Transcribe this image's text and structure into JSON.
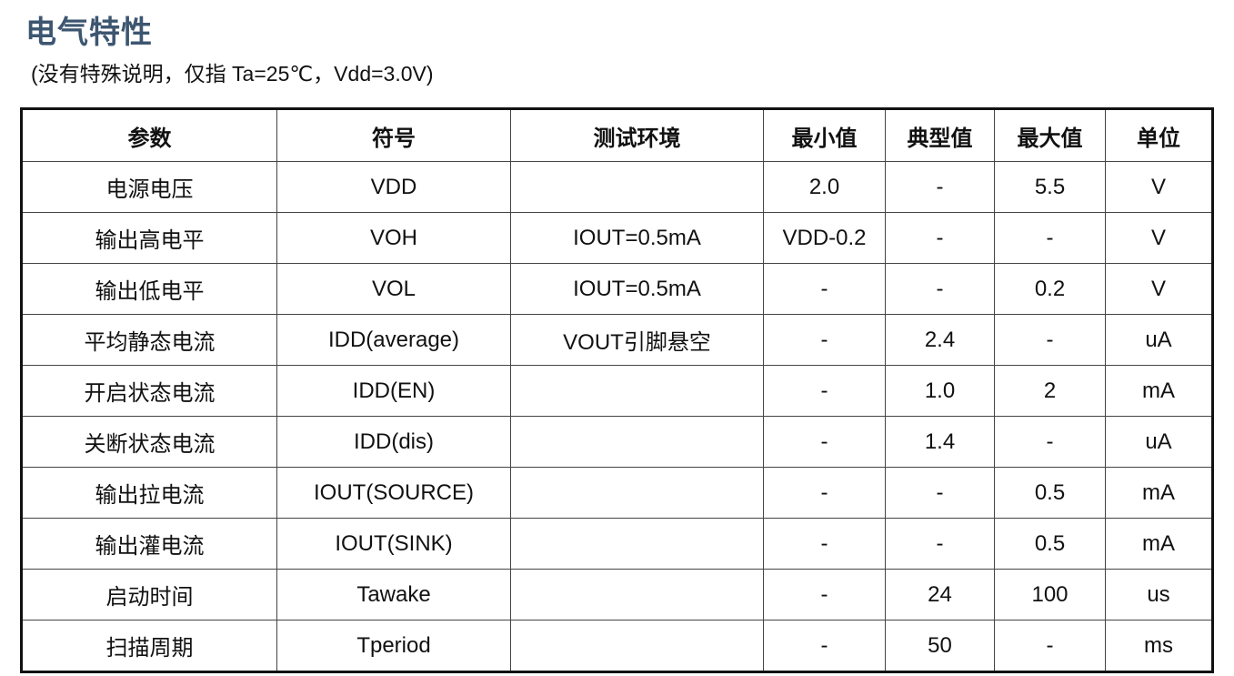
{
  "header": {
    "title": "电气特性",
    "subtitle": "(没有特殊说明，仅指 Ta=25℃，Vdd=3.0V)"
  },
  "table": {
    "columns": [
      "参数",
      "符号",
      "测试环境",
      "最小值",
      "典型值",
      "最大值",
      "单位"
    ],
    "rows": [
      [
        "电源电压",
        "VDD",
        null,
        "2.0",
        "-",
        "5.5",
        "V"
      ],
      [
        "输出高电平",
        "VOH",
        "IOUT=0.5mA",
        "VDD-0.2",
        "-",
        "-",
        "V"
      ],
      [
        "输出低电平",
        "VOL",
        "IOUT=0.5mA",
        "-",
        "-",
        "0.2",
        "V"
      ],
      [
        "平均静态电流",
        "IDD(average)",
        "VOUT引脚悬空",
        "-",
        "2.4",
        "-",
        "uA"
      ],
      [
        "开启状态电流",
        "IDD(EN)",
        null,
        "-",
        "1.0",
        "2",
        "mA"
      ],
      [
        "关断状态电流",
        "IDD(dis)",
        null,
        "-",
        "1.4",
        "-",
        "uA"
      ],
      [
        "输出拉电流",
        "IOUT(SOURCE)",
        null,
        "-",
        "-",
        "0.5",
        "mA"
      ],
      [
        "输出灌电流",
        "IOUT(SINK)",
        null,
        "-",
        "-",
        "0.5",
        "mA"
      ],
      [
        "启动时间",
        "Tawake",
        null,
        "-",
        "24",
        "100",
        "us"
      ],
      [
        "扫描周期",
        "Tperiod",
        null,
        "-",
        "50",
        "-",
        "ms"
      ]
    ]
  }
}
